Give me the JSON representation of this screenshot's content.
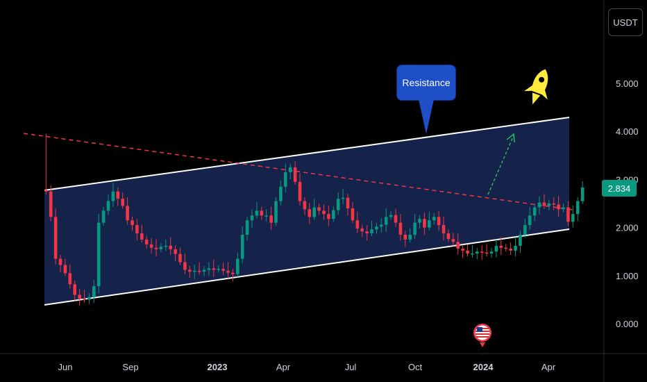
{
  "header": {
    "currency": "USDT"
  },
  "price": {
    "current": "2.834",
    "current_value": 2.834
  },
  "annotations": {
    "resistance": "Resistance"
  },
  "icons": {
    "rocket": "rocket-icon",
    "event": "us-flag-event-icon"
  },
  "colors": {
    "background": "#000000",
    "up": "#089981",
    "down": "#f23645",
    "channel_fill": "#15234a",
    "channel_line": "#ffffff",
    "trend_line": "#f23645",
    "arrow": "#22c55e",
    "callout": "#1f4fc6",
    "rocket": "#ffeb3b",
    "grid_text": "#d1d4dc"
  },
  "chart_data": {
    "type": "candlestick",
    "y_axis": {
      "labels": [
        "0.000",
        "1.000",
        "2.000",
        "3.000",
        "4.000",
        "5.000"
      ],
      "ylim": [
        -0.4,
        5.8
      ]
    },
    "x_axis": {
      "labels": [
        "Jun",
        "Sep",
        "2023",
        "Apr",
        "Jul",
        "Oct",
        "2024",
        "Apr"
      ],
      "bold": [
        "2023",
        "2024"
      ]
    },
    "weekly_close": [
      2.75,
      2.22,
      1.35,
      1.22,
      1.05,
      0.82,
      0.6,
      0.52,
      0.5,
      0.55,
      0.78,
      2.1,
      2.35,
      2.55,
      2.75,
      2.6,
      2.45,
      2.15,
      2.05,
      1.88,
      1.75,
      1.65,
      1.58,
      1.55,
      1.6,
      1.62,
      1.55,
      1.45,
      1.28,
      1.12,
      1.08,
      1.1,
      1.08,
      1.12,
      1.15,
      1.12,
      1.14,
      1.1,
      1.06,
      1.03,
      1.35,
      1.85,
      2.15,
      2.25,
      2.35,
      2.25,
      2.25,
      2.1,
      2.55,
      2.85,
      3.15,
      3.25,
      2.95,
      2.55,
      2.38,
      2.22,
      2.42,
      2.35,
      2.28,
      2.18,
      2.36,
      2.6,
      2.62,
      2.4,
      2.15,
      1.98,
      1.92,
      1.88,
      1.96,
      2.02,
      2.06,
      2.22,
      2.26,
      2.1,
      1.85,
      1.75,
      1.85,
      2.1,
      2.18,
      2.0,
      2.15,
      2.22,
      2.05,
      1.88,
      1.76,
      1.7,
      1.56,
      1.52,
      1.46,
      1.46,
      1.5,
      1.48,
      1.46,
      1.5,
      1.62,
      1.58,
      1.56,
      1.52,
      1.62,
      1.85,
      2.05,
      2.25,
      2.42,
      2.52,
      2.45,
      2.5,
      2.48,
      2.38,
      2.42,
      2.12,
      2.28,
      2.55,
      2.834
    ]
  }
}
